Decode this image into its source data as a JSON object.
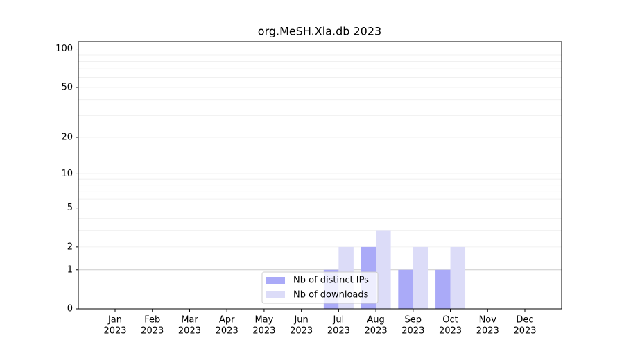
{
  "chart_data": {
    "type": "bar",
    "title": "org.MeSH.Xla.db 2023",
    "categories": [
      "Jan",
      "Feb",
      "Mar",
      "Apr",
      "May",
      "Jun",
      "Jul",
      "Aug",
      "Sep",
      "Oct",
      "Nov",
      "Dec"
    ],
    "category_sublabels": [
      "2023",
      "2023",
      "2023",
      "2023",
      "2023",
      "2023",
      "2023",
      "2023",
      "2023",
      "2023",
      "2023",
      "2023"
    ],
    "series": [
      {
        "name": "Nb of distinct IPs",
        "color": "#aaaaf8",
        "values": [
          0,
          0,
          0,
          0,
          0,
          0,
          1,
          2,
          1,
          1,
          0,
          0
        ]
      },
      {
        "name": "Nb of downloads",
        "color": "#dcdcf8",
        "values": [
          0,
          0,
          0,
          0,
          0,
          0,
          2,
          3,
          2,
          2,
          0,
          0
        ]
      }
    ],
    "yscale": "log1p",
    "ylim": [
      0,
      114
    ],
    "yticks": [
      0,
      1,
      2,
      5,
      10,
      20,
      50,
      100
    ],
    "major_grid": [
      1,
      10,
      100
    ],
    "minor_grid": [
      2,
      3,
      4,
      5,
      6,
      7,
      8,
      9,
      20,
      30,
      40,
      50,
      60,
      70,
      80,
      90
    ],
    "legend": "lower center"
  }
}
